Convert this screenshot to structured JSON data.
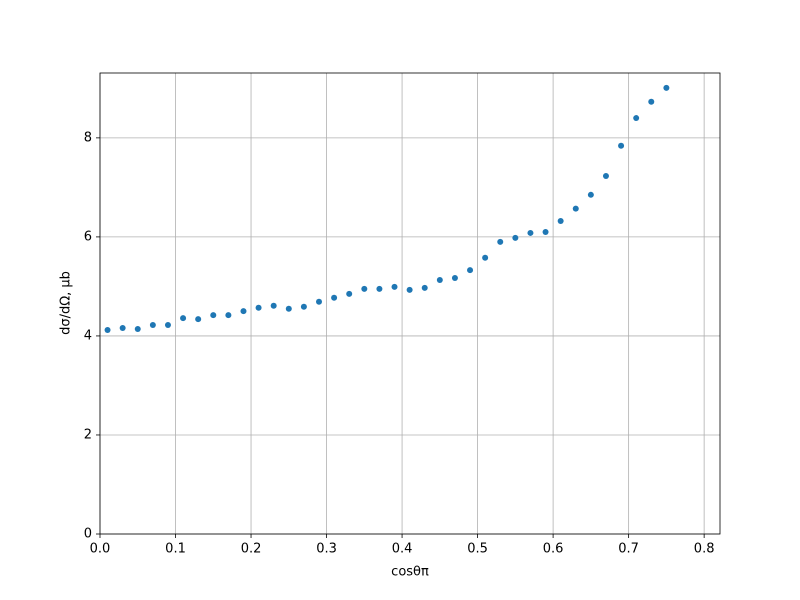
{
  "chart_data": {
    "type": "scatter",
    "xlabel": "cosθπ",
    "ylabel": "dσ/dΩ, μb",
    "x": [
      0.01,
      0.03,
      0.05,
      0.07,
      0.09,
      0.11,
      0.13,
      0.15,
      0.17,
      0.19,
      0.21,
      0.23,
      0.25,
      0.27,
      0.29,
      0.31,
      0.33,
      0.35,
      0.37,
      0.39,
      0.41,
      0.43,
      0.45,
      0.47,
      0.49,
      0.51,
      0.53,
      0.55,
      0.57,
      0.59,
      0.61,
      0.63,
      0.65,
      0.67,
      0.69,
      0.71,
      0.73,
      0.75
    ],
    "values": [
      4.12,
      4.16,
      4.14,
      4.22,
      4.22,
      4.36,
      4.34,
      4.42,
      4.42,
      4.5,
      4.57,
      4.61,
      4.55,
      4.59,
      4.69,
      4.77,
      4.85,
      4.95,
      4.95,
      4.99,
      4.93,
      4.97,
      5.13,
      5.17,
      5.33,
      5.58,
      5.9,
      5.98,
      6.08,
      6.1,
      6.32,
      6.57,
      6.85,
      7.23,
      7.84,
      8.4,
      8.73,
      9.01
    ],
    "color": "#1f77b4",
    "xlim": [
      0,
      0.821
    ],
    "ylim": [
      0,
      9.31
    ],
    "xticks": [
      {
        "value": 0,
        "label": "0.0"
      },
      0.1,
      0.2,
      0.3,
      0.4,
      0.5,
      0.6,
      0.7,
      0.8
    ],
    "yticks": [
      0,
      2,
      4,
      6,
      8
    ],
    "grid": true
  }
}
